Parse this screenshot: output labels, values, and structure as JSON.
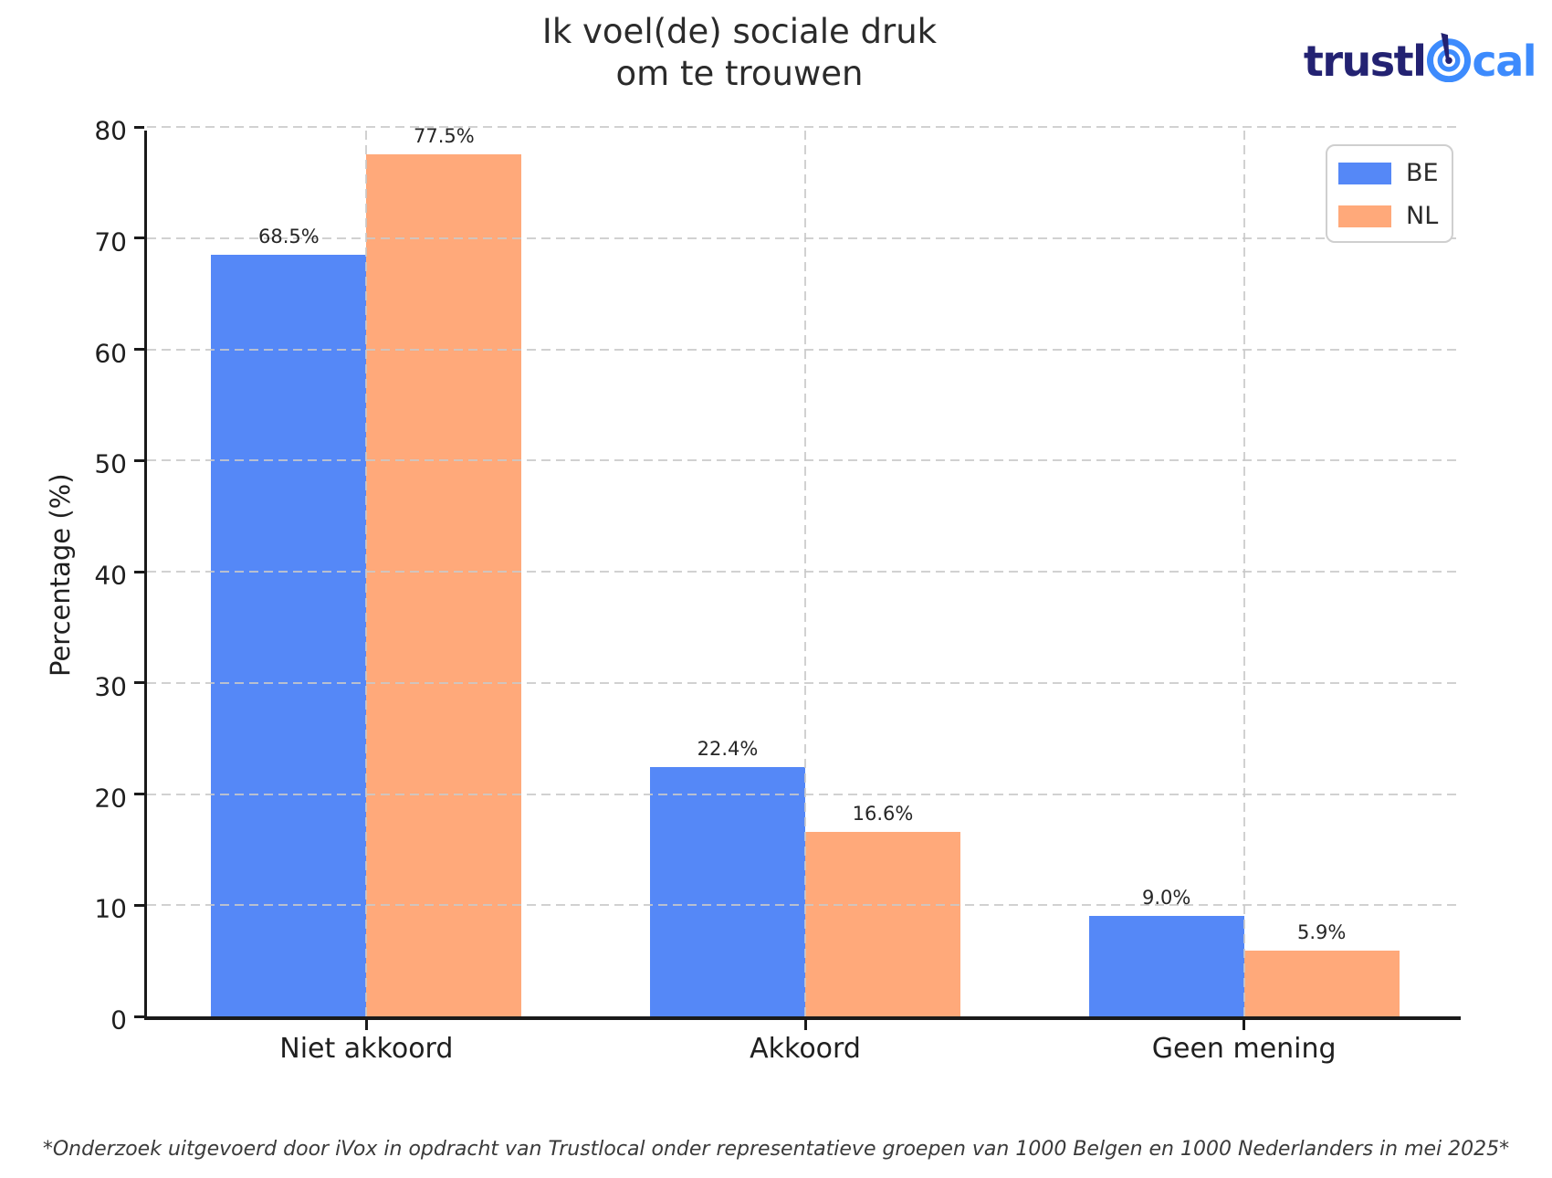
{
  "title": {
    "line1": "Ik voel(de) sociale druk",
    "line2": "om te trouwen"
  },
  "logo": {
    "text_dark": "trustl",
    "text_light": "cal",
    "color_dark": "#232272",
    "color_light": "#3d8bfd",
    "icon": "bullseye-icon"
  },
  "legend": {
    "position": "upper right",
    "items": [
      {
        "label": "BE",
        "color": "#5588f7"
      },
      {
        "label": "NL",
        "color": "#ffa97a"
      }
    ]
  },
  "footnote": "*Onderzoek uitgevoerd door iVox in opdracht van Trustlocal onder representatieve groepen van 1000 Belgen en 1000 Nederlanders in mei 2025*",
  "chart_data": {
    "type": "bar",
    "title": "Ik voel(de) sociale druk om te trouwen",
    "categories": [
      "Niet akkoord",
      "Akkoord",
      "Geen mening"
    ],
    "series": [
      {
        "name": "BE",
        "color": "#5588f7",
        "values": [
          68.5,
          22.4,
          9.0
        ]
      },
      {
        "name": "NL",
        "color": "#ffa97a",
        "values": [
          77.5,
          16.6,
          5.9
        ]
      }
    ],
    "value_labels": [
      [
        "68.5%",
        "22.4%",
        "9.0%"
      ],
      [
        "77.5%",
        "16.6%",
        "5.9%"
      ]
    ],
    "xlabel": "",
    "ylabel": "Percentage (%)",
    "ylim": [
      0,
      80
    ],
    "yticks": [
      0,
      10,
      20,
      30,
      40,
      50,
      60,
      70,
      80
    ],
    "grid": true,
    "grid_style": "dashed",
    "legend_position": "upper right",
    "colors": {
      "axis": "#1a1a1a",
      "grid": "#c9c9c9",
      "text": "#1f1f1f"
    }
  }
}
